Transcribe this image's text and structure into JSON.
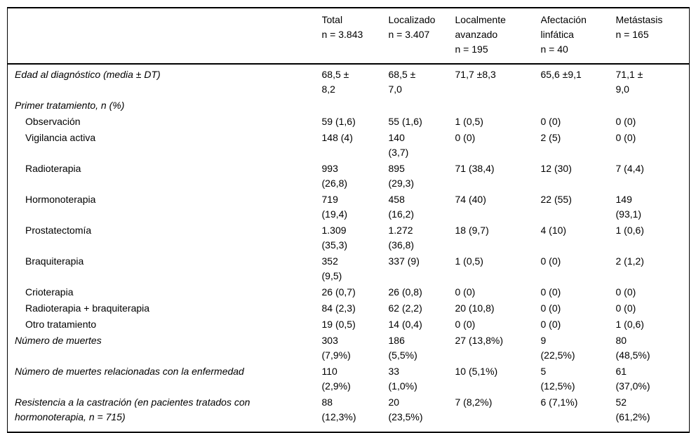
{
  "table": {
    "header": {
      "spacer": "",
      "cols": [
        {
          "label": "Total",
          "n": "n = 3.843"
        },
        {
          "label": "Localizado",
          "n": "n = 3.407"
        },
        {
          "label": "Localmente\navanzado",
          "n": "n = 195"
        },
        {
          "label": "Afectación\nlinfática",
          "n": "n = 40"
        },
        {
          "label": "Metástasis",
          "n": "n = 165"
        }
      ]
    },
    "rows": [
      {
        "label": "Edad al diagnóstico (media ± DT)",
        "values": [
          "68,5 ±\n8,2",
          "68,5 ±\n7,0",
          "71,7 ±8,3",
          "65,6 ±9,1",
          "71,1 ±\n9,0"
        ]
      },
      {
        "label": "Primer tratamiento, n (%)",
        "values": [
          "",
          "",
          "",
          "",
          ""
        ]
      },
      {
        "label": "Observación",
        "values": [
          "59 (1,6)",
          "55 (1,6)",
          "1 (0,5)",
          "0 (0)",
          "0 (0)"
        ]
      },
      {
        "label": "Vigilancia activa",
        "values": [
          "148 (4)",
          "140\n(3,7)",
          "0 (0)",
          "2 (5)",
          "0 (0)"
        ]
      },
      {
        "label": "Radioterapia",
        "values": [
          "993\n(26,8)",
          "895\n(29,3)",
          "71 (38,4)",
          "12 (30)",
          "7 (4,4)"
        ]
      },
      {
        "label": "Hormonoterapia",
        "values": [
          "719\n(19,4)",
          "458\n(16,2)",
          "74 (40)",
          "22 (55)",
          "149\n(93,1)"
        ]
      },
      {
        "label": "Prostatectomía",
        "values": [
          "1.309\n(35,3)",
          "1.272\n(36,8)",
          "18 (9,7)",
          "4 (10)",
          "1 (0,6)"
        ]
      },
      {
        "label": "Braquiterapia",
        "values": [
          "352\n(9,5)",
          "337 (9)",
          "1 (0,5)",
          "0 (0)",
          "2 (1,2)"
        ]
      },
      {
        "label": "Crioterapia",
        "values": [
          "26 (0,7)",
          "26 (0,8)",
          "0 (0)",
          "0 (0)",
          "0 (0)"
        ]
      },
      {
        "label": "Radioterapia + braquiterapia",
        "values": [
          "84 (2,3)",
          "62 (2,2)",
          "20 (10,8)",
          "0 (0)",
          "0 (0)"
        ]
      },
      {
        "label": "Otro tratamiento",
        "values": [
          "19 (0,5)",
          "14 (0,4)",
          "0 (0)",
          "0 (0)",
          "1 (0,6)"
        ]
      },
      {
        "label": "Número de muertes",
        "values": [
          "303\n(7,9%)",
          "186\n(5,5%)",
          "27 (13,8%)",
          "9\n(22,5%)",
          "80\n(48,5%)"
        ]
      },
      {
        "label": "Número de muertes relacionadas con la enfermedad",
        "values": [
          "110\n(2,9%)",
          "33\n(1,0%)",
          "10 (5,1%)",
          "5\n(12,5%)",
          "61\n(37,0%)"
        ]
      },
      {
        "label": "Resistencia a la castración (en pacientes tratados con hormonoterapia, n = 715)",
        "values": [
          "88\n(12,3%)",
          "20\n(23,5%)",
          "7 (8,2%)",
          "6 (7,1%)",
          "52\n(61,2%)"
        ]
      }
    ]
  }
}
